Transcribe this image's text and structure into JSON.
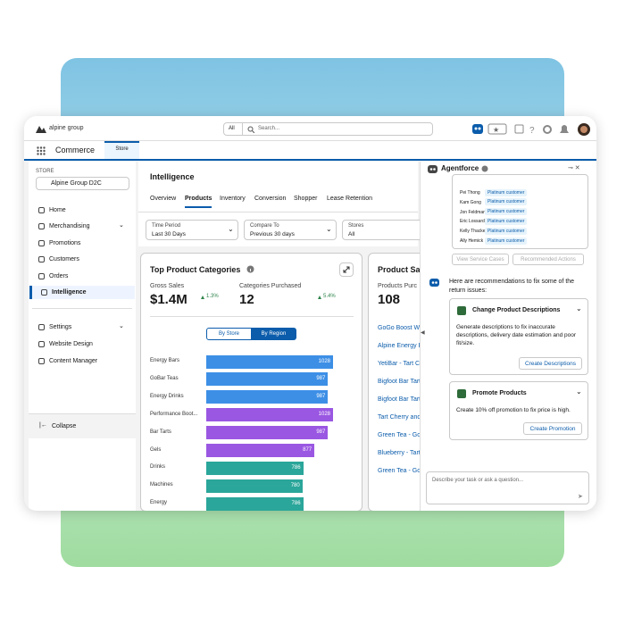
{
  "header": {
    "logo": "alpine group",
    "search_scope": "All",
    "search_placeholder": "Search...",
    "app_name": "Commerce",
    "tab": "Store"
  },
  "sidebar": {
    "store_label": "STORE",
    "store": "Alpine Group D2C",
    "nav": [
      "Home",
      "Merchandising",
      "Promotions",
      "Customers",
      "Orders",
      "Intelligence"
    ],
    "settings_nav": [
      "Settings",
      "Website Design",
      "Content Manager"
    ],
    "collapse": "Collapse"
  },
  "main": {
    "title": "Intelligence",
    "tabs": [
      "Overview",
      "Products",
      "Inventory",
      "Conversion",
      "Shopper",
      "Lease Retention"
    ],
    "filters": [
      {
        "label": "Time Period",
        "value": "Last 30 Days"
      },
      {
        "label": "Compare To",
        "value": "Previous 30 days"
      },
      {
        "label": "Stores",
        "value": "All"
      }
    ]
  },
  "top_categories": {
    "title": "Top Product Categories",
    "metrics": [
      {
        "label": "Gross Sales",
        "value": "$1.4M",
        "change": "1.3%"
      },
      {
        "label": "Categories Purchased",
        "value": "12",
        "change": "5.4%"
      }
    ],
    "toggle": [
      "By Store",
      "By Region"
    ],
    "chart_data": {
      "type": "bar",
      "categories": [
        "Energy Bars",
        "GoBar Teas",
        "Energy Drinks",
        "Performance Boot...",
        "Bar Tarts",
        "Gels",
        "Drinks",
        "Machines",
        "Energy"
      ],
      "values": [
        1028,
        987,
        987,
        1028,
        987,
        877,
        786,
        780,
        786
      ],
      "colors": [
        "#3d8fe6",
        "#3d8fe6",
        "#3d8fe6",
        "#9a57e2",
        "#9a57e2",
        "#9a57e2",
        "#2aa69a",
        "#2aa69a",
        "#2aa69a"
      ]
    }
  },
  "product_sales": {
    "title": "Product Sal",
    "metric_label": "Products Purc",
    "metric_value": "108",
    "items": [
      "GoGo Boost W",
      "Alpine Energy B",
      "YetiBar - Tart Ch",
      "Bigfoot Bar Tart",
      "Bigfoot Bar Tart",
      "Tart Cherry and",
      "Green Tea - GoB",
      "Blueberry - Tart",
      "Green Tea - Go"
    ]
  },
  "agent": {
    "title": "Agentforce",
    "customers": [
      {
        "name": "Pei Thong",
        "tier": "Platinum customer"
      },
      {
        "name": "Kam Gong",
        "tier": "Platinum customer"
      },
      {
        "name": "Jon Feldman",
        "tier": "Platinum customer"
      },
      {
        "name": "Eric Lossard",
        "tier": "Platinum customer"
      },
      {
        "name": "Kelly Thacker",
        "tier": "Platinum customer"
      },
      {
        "name": "Ally Hemick",
        "tier": "Platinum customer"
      }
    ],
    "buttons": [
      "View Service Cases",
      "Recommended Actions"
    ],
    "message": "Here are recommendations to fix some of the return issues:",
    "cards": [
      {
        "title": "Change Product Descriptions",
        "body": "Generate descriptions to fix inaccurate descriptions, delivery date estimation and poor fit/size.",
        "action": "Create Descriptions"
      },
      {
        "title": "Promote Products",
        "body": "Create 10% off promotion to fix price is high.",
        "action": "Create Promotion"
      }
    ],
    "input_placeholder": "Describe your task or ask a question..."
  }
}
